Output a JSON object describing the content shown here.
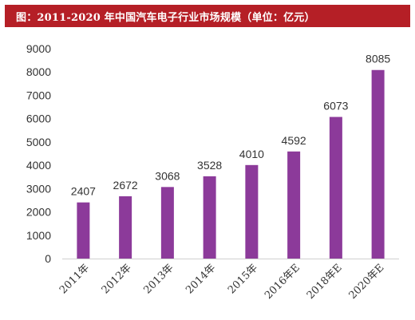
{
  "title": "图：2011-2020 年中国汽车电子行业市场规模（单位：亿元）",
  "colors": {
    "title_bg": "#b51f26",
    "bar": "#8c3a9a",
    "axis": "#d0d0d0",
    "text": "#333333"
  },
  "chart_data": {
    "type": "bar",
    "title": "图：2011-2020 年中国汽车电子行业市场规模（单位：亿元）",
    "categories": [
      "2011年",
      "2012年",
      "2013年",
      "2014年",
      "2015年",
      "2016年E",
      "2018年E",
      "2020年E"
    ],
    "values": [
      2407,
      2672,
      3068,
      3528,
      4010,
      4592,
      6073,
      8085
    ],
    "data_labels": [
      "2407",
      "2672",
      "3068",
      "3528",
      "4010",
      "4592",
      "6073",
      "8085"
    ],
    "yticks": [
      "0",
      "1000",
      "2000",
      "3000",
      "4000",
      "5000",
      "6000",
      "7000",
      "8000",
      "9000"
    ],
    "ylim": [
      0,
      9000
    ],
    "xlabel": "",
    "ylabel": "",
    "grid": false,
    "legend": "none"
  }
}
